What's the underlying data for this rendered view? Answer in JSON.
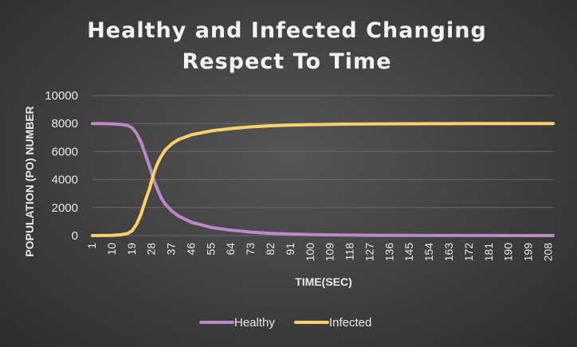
{
  "chart_data": {
    "type": "line",
    "title": [
      "Healthy and Infected Changing",
      "Respect To Time"
    ],
    "xlabel": "TIME(SEC)",
    "ylabel": "POPULATION (PO) NUMBER",
    "ylim": [
      0,
      10000
    ],
    "yticks": [
      "0",
      "2000",
      "4000",
      "6000",
      "8000",
      "10000"
    ],
    "x_range": [
      1,
      210
    ],
    "xticks": [
      "1",
      "10",
      "19",
      "28",
      "37",
      "46",
      "55",
      "64",
      "73",
      "82",
      "91",
      "100",
      "109",
      "118",
      "127",
      "136",
      "145",
      "154",
      "163",
      "172",
      "181",
      "190",
      "199",
      "208"
    ],
    "grid": true,
    "legend_position": "bottom",
    "series": [
      {
        "name": "Healthy",
        "color": "#b98ac6",
        "x": [
          1,
          5,
          10,
          14,
          17,
          19,
          21,
          23,
          25,
          27,
          28,
          29,
          30,
          31,
          32,
          34,
          37,
          40,
          46,
          55,
          64,
          73,
          82,
          91,
          100,
          109,
          118,
          127,
          136,
          145,
          154,
          163,
          172,
          181,
          190,
          199,
          208,
          210
        ],
        "values": [
          8000,
          7995,
          7975,
          7930,
          7860,
          7700,
          7300,
          6700,
          5800,
          4900,
          4400,
          3900,
          3500,
          3100,
          2750,
          2250,
          1750,
          1400,
          950,
          580,
          380,
          250,
          160,
          110,
          75,
          50,
          35,
          25,
          18,
          12,
          8,
          6,
          4,
          3,
          2,
          1,
          1,
          1
        ]
      },
      {
        "name": "Infected",
        "color": "#fdd16a",
        "x": [
          1,
          10,
          14,
          17,
          19,
          21,
          23,
          25,
          27,
          28,
          29,
          30,
          31,
          32,
          34,
          37,
          40,
          46,
          55,
          64,
          73,
          82,
          91,
          100,
          109,
          118,
          127,
          136,
          145,
          154,
          163,
          172,
          181,
          190,
          199,
          208,
          210
        ],
        "values": [
          0,
          10,
          60,
          150,
          350,
          800,
          1500,
          2500,
          3400,
          4000,
          4500,
          4950,
          5300,
          5600,
          6100,
          6550,
          6850,
          7200,
          7480,
          7640,
          7760,
          7840,
          7890,
          7920,
          7945,
          7960,
          7970,
          7978,
          7984,
          7988,
          7991,
          7994,
          7996,
          7997,
          7998,
          7999,
          8000
        ]
      }
    ]
  }
}
